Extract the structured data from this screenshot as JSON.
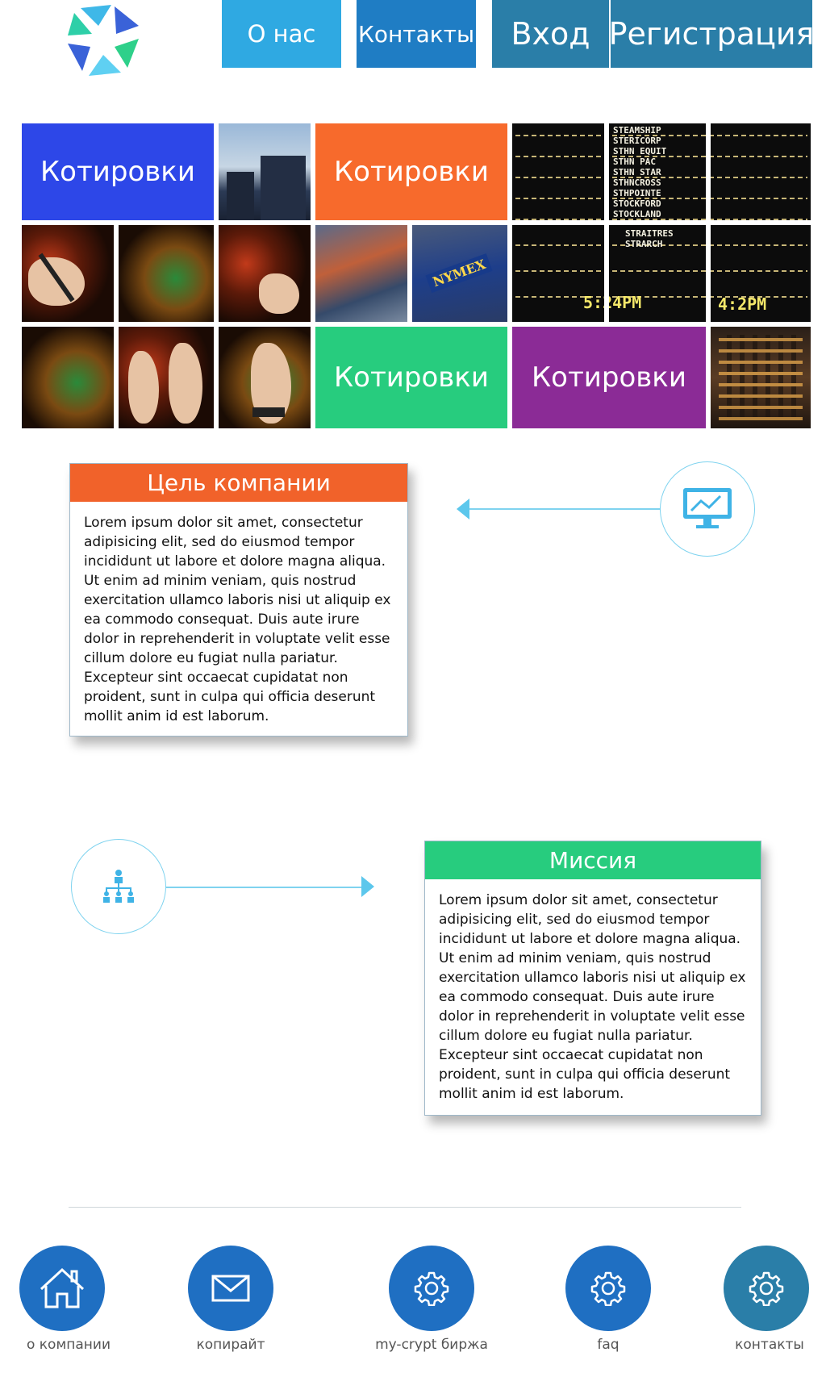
{
  "header": {
    "logo_icon": "star-logo-icon",
    "nav": [
      {
        "id": "about",
        "label": "О нас"
      },
      {
        "id": "contacts",
        "label": "Контакты"
      },
      {
        "id": "login",
        "label": "Вход"
      },
      {
        "id": "register",
        "label": "Регистрация"
      }
    ]
  },
  "mosaic": {
    "tiles": [
      {
        "label": "Котировки",
        "color": "#2d47e8"
      },
      {
        "label": "Котировки",
        "color": "#f76a2c"
      },
      {
        "label": "Котировки",
        "color": "#27cc7e"
      },
      {
        "label": "Котировки",
        "color": "#8b2b96"
      }
    ],
    "board_lines": [
      "STEAMSHIP",
      "STERICORP",
      "STHN EQUIT",
      "STHN PAC",
      "STHN STAR",
      "STHNCROSS",
      "STHPOINTE",
      "STOCKFORD",
      "STOCKLAND"
    ],
    "board_lines_2": [
      "STRAITRES",
      "STRARCH"
    ],
    "nymex": "NYMEX",
    "clock_1": "5:24PM",
    "clock_2": "4:2PM"
  },
  "goal": {
    "title": "Цель компании",
    "text": "Lorem ipsum dolor sit amet, consectetur adipisicing elit, sed do eiusmod tempor incididunt ut labore et dolore magna aliqua. Ut enim ad minim veniam, quis nostrud exercitation ullamco laboris nisi ut aliquip ex ea commodo consequat. Duis aute irure dolor in reprehenderit in voluptate velit esse cillum dolore eu fugiat nulla pariatur. Excepteur sint occaecat cupidatat non proident, sunt in culpa qui officia deserunt mollit anim id est laborum.",
    "icon": "monitor-chart-icon"
  },
  "mission": {
    "title": "Миссия",
    "text": "Lorem ipsum dolor sit amet, consectetur adipisicing elit, sed do eiusmod tempor incididunt ut labore et dolore magna aliqua. Ut enim ad minim veniam, quis nostrud exercitation ullamco laboris nisi ut aliquip ex ea commodo consequat. Duis aute irure dolor in reprehenderit in voluptate velit esse cillum dolore eu fugiat nulla pariatur. Excepteur sint occaecat cupidatat non proident, sunt in culpa qui officia deserunt mollit anim id est laborum.",
    "icon": "org-chart-icon"
  },
  "footer": {
    "items": [
      {
        "label": "о компании",
        "icon": "home-icon"
      },
      {
        "label": "копирайт",
        "icon": "mail-icon"
      },
      {
        "label": "my-crypt биржа",
        "icon": "gear-icon"
      },
      {
        "label": "faq",
        "icon": "gear-icon"
      },
      {
        "label": "контакты",
        "icon": "gear-icon"
      }
    ]
  }
}
